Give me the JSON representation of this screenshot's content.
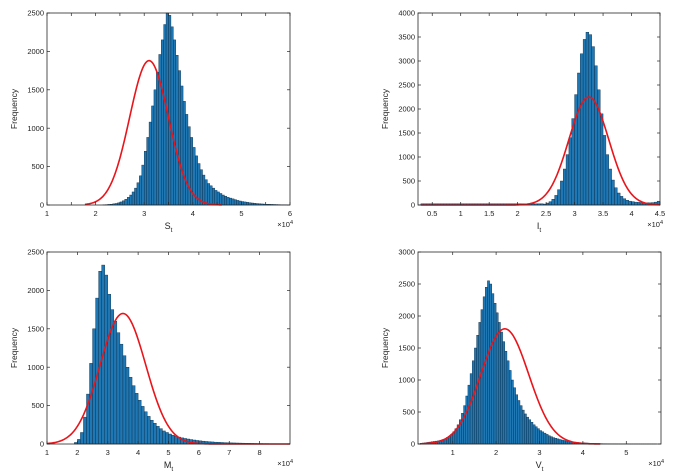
{
  "colors": {
    "bar": "#1f77b4",
    "bar_edge": "#0b2b44",
    "fit": "#e8151b",
    "axis": "#262626"
  },
  "chart_data": [
    {
      "type": "bar",
      "xlabel": "S",
      "xlabel_sub": "t",
      "ylabel": "Frequency",
      "exponent_label": "×10",
      "exponent_power": "4",
      "xlim": [
        1,
        6
      ],
      "ylim": [
        0,
        2500
      ],
      "xticks": [
        1,
        1.5,
        2,
        2.5,
        3,
        3.5,
        4,
        4.5,
        5,
        5.5,
        6
      ],
      "xtick_labels": [
        "1",
        "",
        "2",
        "",
        "3",
        "",
        "4",
        "",
        "5",
        "",
        "6"
      ],
      "yticks": [
        0,
        500,
        1000,
        1500,
        2000,
        2500
      ],
      "ytick_labels": [
        "0",
        "500",
        "1000",
        "1500",
        "2000",
        "2500"
      ],
      "bins": {
        "start": 2.15,
        "width": 0.05,
        "counts": [
          3,
          5,
          8,
          10,
          15,
          20,
          28,
          40,
          55,
          75,
          100,
          130,
          170,
          220,
          290,
          380,
          520,
          700,
          880,
          1080,
          1290,
          1500,
          1730,
          1960,
          2150,
          2350,
          2500,
          2470,
          2320,
          2150,
          1950,
          1750,
          1550,
          1350,
          1180,
          1020,
          880,
          750,
          640,
          540,
          460,
          390,
          330,
          280,
          250,
          220,
          190,
          170,
          150,
          130,
          115,
          100,
          90,
          80,
          70,
          60,
          52,
          45,
          40,
          35,
          30,
          26,
          22,
          19,
          16,
          14,
          12,
          10,
          9,
          8,
          7,
          6,
          5,
          4,
          4,
          3
        ]
      },
      "fit": {
        "mu": 3.1,
        "sigma": 0.4,
        "peak": 1880,
        "from": 1.78,
        "to": 4.6
      }
    },
    {
      "type": "bar",
      "xlabel": "I",
      "xlabel_sub": "t",
      "ylabel": "Frequency",
      "exponent_label": "×10",
      "exponent_power": "4",
      "xlim": [
        0.25,
        4.5
      ],
      "ylim": [
        0,
        4000
      ],
      "xticks": [
        0.5,
        1,
        1.5,
        2,
        2.5,
        3,
        3.5,
        4,
        4.5
      ],
      "xtick_labels": [
        "0.5",
        "1",
        "1.5",
        "2",
        "2.5",
        "3",
        "3.5",
        "4",
        "4.5"
      ],
      "yticks": [
        0,
        500,
        1000,
        1500,
        2000,
        2500,
        3000,
        3500,
        4000
      ],
      "ytick_labels": [
        "0",
        "500",
        "1000",
        "1500",
        "2000",
        "2500",
        "3000",
        "3500",
        "4000"
      ],
      "bins": {
        "start": 2.45,
        "width": 0.05,
        "counts": [
          20,
          40,
          70,
          120,
          200,
          320,
          500,
          750,
          1050,
          1400,
          1800,
          2300,
          2750,
          3150,
          3450,
          3600,
          3550,
          3300,
          2900,
          2400,
          1900,
          1450,
          1050,
          750,
          520,
          360,
          250,
          180,
          130,
          100,
          80,
          70,
          60,
          55,
          50,
          48,
          46,
          45,
          50,
          60,
          80
        ]
      },
      "baseline": {
        "from": 0.3,
        "to": 2.45,
        "count": 25
      },
      "fit": {
        "mu": 3.25,
        "sigma": 0.35,
        "peak": 2250,
        "from": 0.3,
        "to": 4.5
      }
    },
    {
      "type": "bar",
      "xlabel": "M",
      "xlabel_sub": "t",
      "ylabel": "Frequency",
      "exponent_label": "×10",
      "exponent_power": "4",
      "xlim": [
        1,
        9
      ],
      "ylim": [
        0,
        2500
      ],
      "xticks": [
        1,
        2,
        3,
        4,
        5,
        6,
        7,
        8
      ],
      "xtick_labels": [
        "1",
        "2",
        "3",
        "4",
        "5",
        "6",
        "7",
        "8"
      ],
      "yticks": [
        0,
        500,
        1000,
        1500,
        2000,
        2500
      ],
      "ytick_labels": [
        "0",
        "500",
        "1000",
        "1500",
        "2000",
        "2500"
      ],
      "bins": {
        "start": 1.9,
        "width": 0.1,
        "counts": [
          20,
          60,
          150,
          350,
          650,
          1050,
          1500,
          1900,
          2250,
          2330,
          2200,
          1950,
          1750,
          1600,
          1450,
          1300,
          1150,
          1000,
          870,
          760,
          660,
          570,
          490,
          420,
          360,
          310,
          270,
          230,
          200,
          170,
          150,
          130,
          115,
          100,
          90,
          80,
          72,
          65,
          58,
          52,
          46,
          41,
          37,
          33,
          30,
          27,
          24,
          22,
          20,
          18,
          16,
          15,
          14,
          13,
          12,
          11,
          10,
          9,
          8,
          7,
          6,
          6,
          5,
          5,
          4,
          4,
          3,
          3,
          3,
          2
        ]
      },
      "fit": {
        "mu": 3.5,
        "sigma": 0.75,
        "peak": 1700,
        "from": 1,
        "to": 9
      }
    },
    {
      "type": "bar",
      "xlabel": "V",
      "xlabel_sub": "t",
      "ylabel": "Frequency",
      "exponent_label": "×10",
      "exponent_power": "4",
      "xlim": [
        0.2,
        5.8
      ],
      "ylim": [
        0,
        3000
      ],
      "xticks": [
        1,
        2,
        3,
        4,
        5
      ],
      "xtick_labels": [
        "1",
        "2",
        "3",
        "4",
        "5"
      ],
      "yticks": [
        0,
        500,
        1000,
        1500,
        2000,
        2500,
        3000
      ],
      "ytick_labels": [
        "0",
        "500",
        "1000",
        "1500",
        "2000",
        "2500",
        "3000"
      ],
      "bins": {
        "start": 0.2,
        "width": 0.05,
        "counts": [
          5,
          10,
          15,
          20,
          25,
          30,
          35,
          40,
          45,
          50,
          60,
          70,
          80,
          100,
          120,
          150,
          190,
          240,
          300,
          380,
          480,
          600,
          750,
          920,
          1100,
          1300,
          1500,
          1700,
          1900,
          2100,
          2300,
          2450,
          2550,
          2500,
          2350,
          2200,
          2050,
          1900,
          1750,
          1600,
          1450,
          1300,
          1150,
          1000,
          880,
          770,
          680,
          600,
          530,
          470,
          420,
          380,
          340,
          300,
          270,
          240,
          210,
          190,
          170,
          150,
          130,
          115,
          100,
          90,
          80,
          70,
          62,
          55,
          48,
          42,
          37,
          33,
          29,
          25,
          22,
          20,
          18,
          16,
          14,
          12,
          10,
          9,
          8,
          7,
          6,
          5,
          5,
          4,
          4,
          3,
          3,
          3,
          2,
          2,
          2,
          2,
          2,
          1,
          1,
          1,
          1,
          1,
          1,
          1,
          1,
          1,
          1,
          1,
          1,
          1
        ]
      },
      "fit": {
        "mu": 2.2,
        "sigma": 0.55,
        "peak": 1800,
        "from": 0.25,
        "to": 4.4
      }
    }
  ]
}
